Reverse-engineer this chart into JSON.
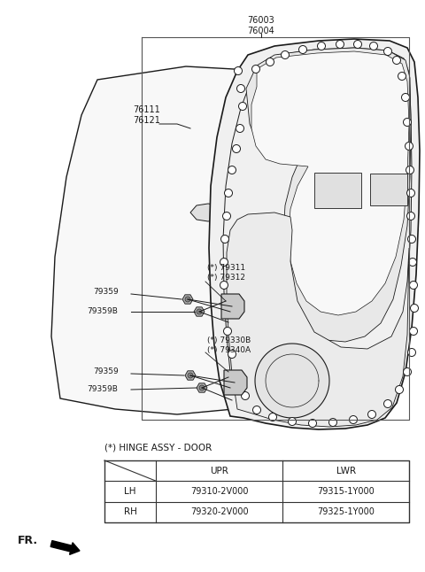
{
  "bg_color": "#ffffff",
  "fig_width": 4.8,
  "fig_height": 6.46,
  "dpi": 100,
  "line_color": "#1a1a1a",
  "table_title": "(*) HINGE ASSY - DOOR",
  "table_rows": [
    [
      "LH",
      "79310-2V000",
      "79315-1Y000"
    ],
    [
      "RH",
      "79320-2V000",
      "79325-1Y000"
    ]
  ],
  "label_76003": "76003\n76004",
  "label_76111": "76111\n76121",
  "label_79311": "(*) 79311\n(*) 79312",
  "label_79330B": "(*) 79330B\n(*) 79340A",
  "label_79359_u": "79359",
  "label_79359B_u": "79359B",
  "label_79359_l": "79359",
  "label_79359B_l": "79359B",
  "fr_label": "FR."
}
